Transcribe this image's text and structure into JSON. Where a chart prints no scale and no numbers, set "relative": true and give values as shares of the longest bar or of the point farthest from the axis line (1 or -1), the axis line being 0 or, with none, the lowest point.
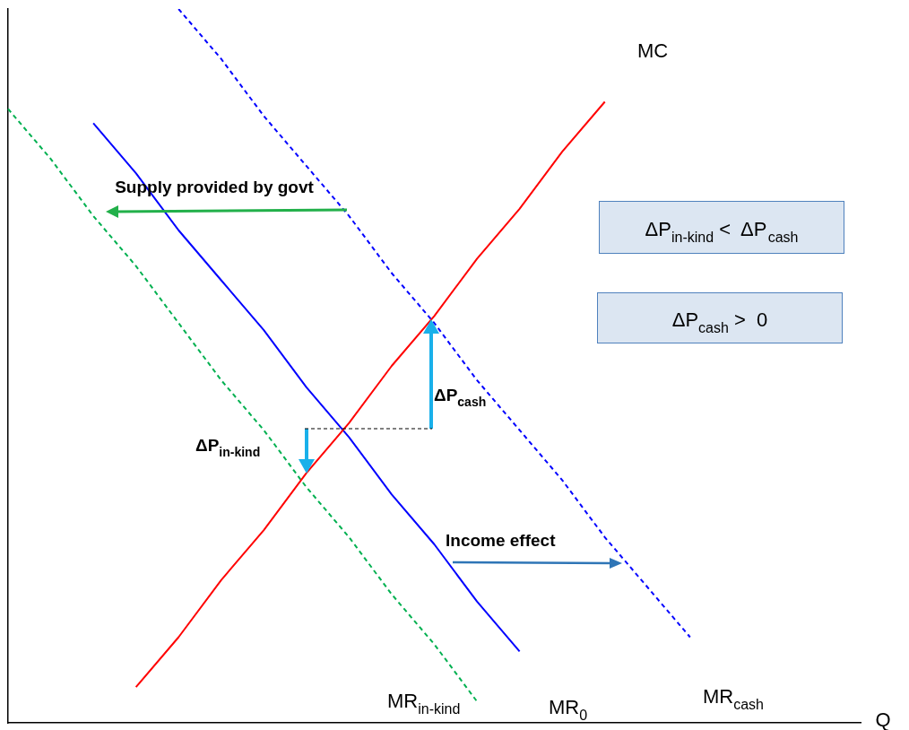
{
  "chart_data": {
    "type": "line",
    "relative": true,
    "xlabel": "Q",
    "marker": "none",
    "categories": [
      null,
      null,
      null,
      null,
      null,
      null,
      null,
      null,
      null,
      null,
      null,
      null,
      null,
      null,
      null,
      null,
      null,
      null,
      null,
      null,
      null
    ],
    "series": [
      {
        "name": "MC",
        "color": "#ff0000",
        "line_style": "solid",
        "values": [
          null,
          null,
          null,
          0.05,
          0.12,
          0.2,
          0.27,
          0.35,
          0.42,
          0.5,
          0.57,
          0.65,
          0.72,
          0.8,
          0.87,
          null,
          null,
          null,
          null,
          null,
          null
        ]
      },
      {
        "name": "MR$_{0}$",
        "color": "#0000ff",
        "line_style": "solid",
        "values": [
          null,
          null,
          0.84,
          0.77,
          0.69,
          0.62,
          0.55,
          0.47,
          0.4,
          0.32,
          0.25,
          0.17,
          0.1,
          null,
          null,
          null,
          null,
          null,
          null,
          null,
          null
        ]
      },
      {
        "name": "MR$_{cash}$",
        "color": "#0000ff",
        "line_style": "dashed",
        "values": [
          null,
          null,
          null,
          null,
          1.0,
          0.93,
          0.85,
          0.78,
          0.71,
          0.63,
          0.56,
          0.48,
          0.41,
          0.34,
          0.26,
          0.19,
          0.12,
          null,
          null,
          null,
          null
        ]
      },
      {
        "name": "MR$_{in-kind}$",
        "color": "#00b050",
        "line_style": "dashed",
        "values": [
          0.86,
          0.79,
          0.71,
          0.64,
          0.56,
          0.48,
          0.41,
          0.33,
          0.26,
          0.18,
          0.11,
          0.03,
          null,
          null,
          null,
          null,
          null,
          null,
          null,
          null,
          null
        ]
      }
    ],
    "annotations": [
      "Supply provided by govt",
      "ΔP$_{cash}$",
      "ΔP$_{in-kind}$",
      "Income effect",
      "ΔP$_{in-kind}$ <  ΔP$_{cash}$",
      "ΔP$_{cash}$ >  0"
    ]
  }
}
